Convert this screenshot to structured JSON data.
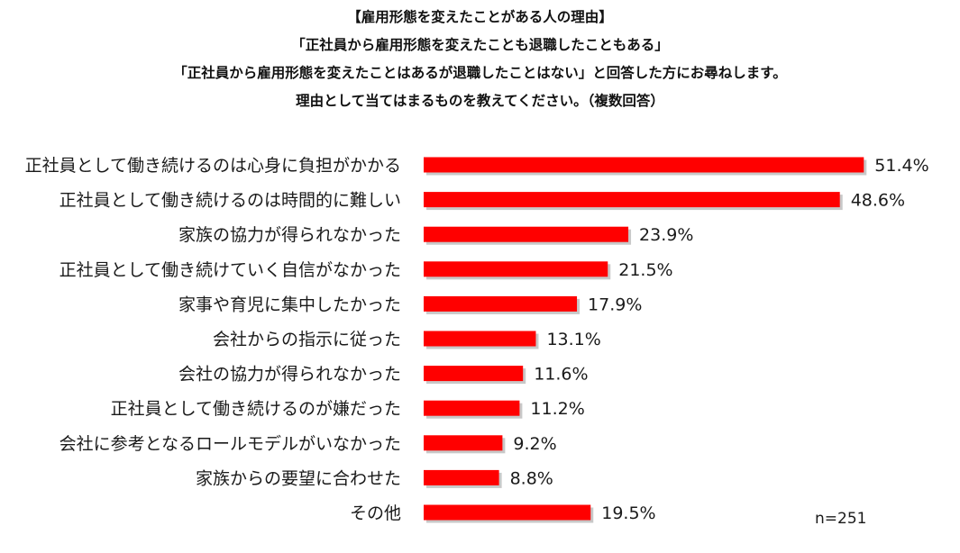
{
  "titles": [
    "【雇用形態を変えたことがある人の理由】",
    "「正社員から雇用形態を変えたことも退職したこともある」",
    "「正社員から雇用形態を変えたことはあるが退職したことはない」と回答した方にお尋ねします。",
    "理由として当てはまるものを教えてください。（複数回答）"
  ],
  "sample_size": "n=251",
  "colors": {
    "bar": "#ff0000",
    "shadow": "#9a9a9a"
  },
  "chart_data": {
    "type": "bar",
    "orientation": "horizontal",
    "title": "【雇用形態を変えたことがある人の理由】",
    "xlabel": "",
    "ylabel": "",
    "unit": "%",
    "xlim": [
      0,
      60
    ],
    "grid": false,
    "legend": "none",
    "categories": [
      "正社員として働き続けるのは心身に負担がかかる",
      "正社員として働き続けるのは時間的に難しい",
      "家族の協力が得られなかった",
      "正社員として働き続けていく自信がなかった",
      "家事や育児に集中したかった",
      "会社からの指示に従った",
      "会社の協力が得られなかった",
      "正社員として働き続けるのが嫌だった",
      "会社に参考となるロールモデルがいなかった",
      "家族からの要望に合わせた",
      "その他"
    ],
    "values": [
      51.4,
      48.6,
      23.9,
      21.5,
      17.9,
      13.1,
      11.6,
      11.2,
      9.2,
      8.8,
      19.5
    ],
    "value_labels": [
      "51.4%",
      "48.6%",
      "23.9%",
      "21.5%",
      "17.9%",
      "13.1%",
      "11.6%",
      "11.2%",
      "9.2%",
      "8.8%",
      "19.5%"
    ]
  }
}
